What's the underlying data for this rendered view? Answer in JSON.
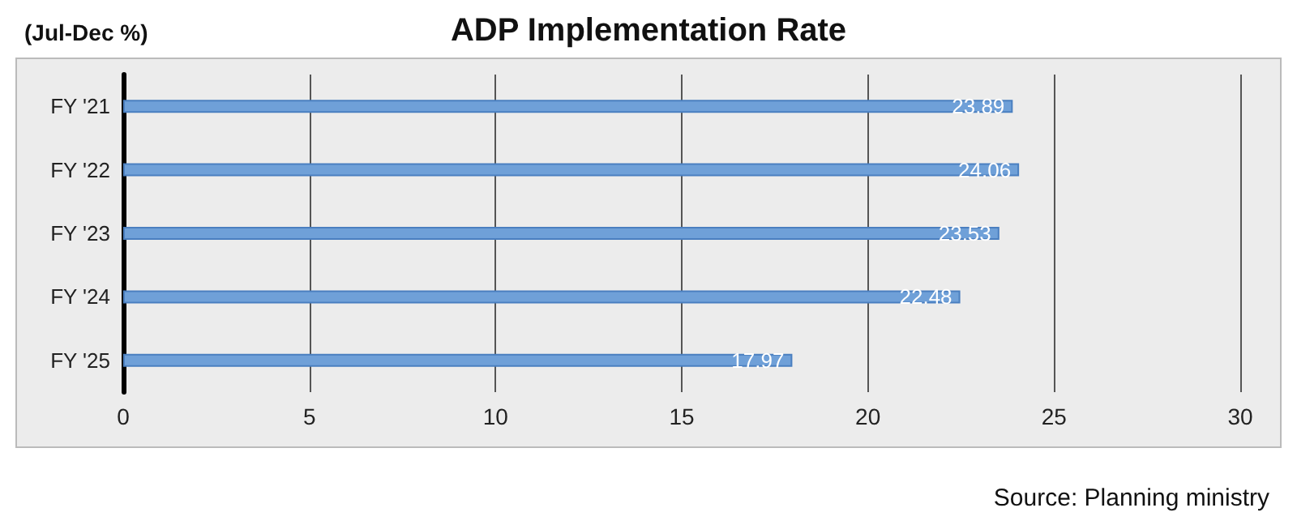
{
  "chart_data": {
    "type": "bar",
    "orientation": "horizontal",
    "title": "ADP Implementation Rate",
    "subtitle": "(Jul-Dec %)",
    "categories": [
      "FY '21",
      "FY '22",
      "FY '23",
      "FY '24",
      "FY '25"
    ],
    "values": [
      23.89,
      24.06,
      23.53,
      22.48,
      17.97
    ],
    "color": "#6fa0d8",
    "xlim": [
      0,
      30
    ],
    "xticks": [
      0,
      5,
      10,
      15,
      20,
      25,
      30
    ],
    "grid": "x",
    "data_labels": true,
    "annotations": [
      "Source: Planning ministry"
    ]
  }
}
